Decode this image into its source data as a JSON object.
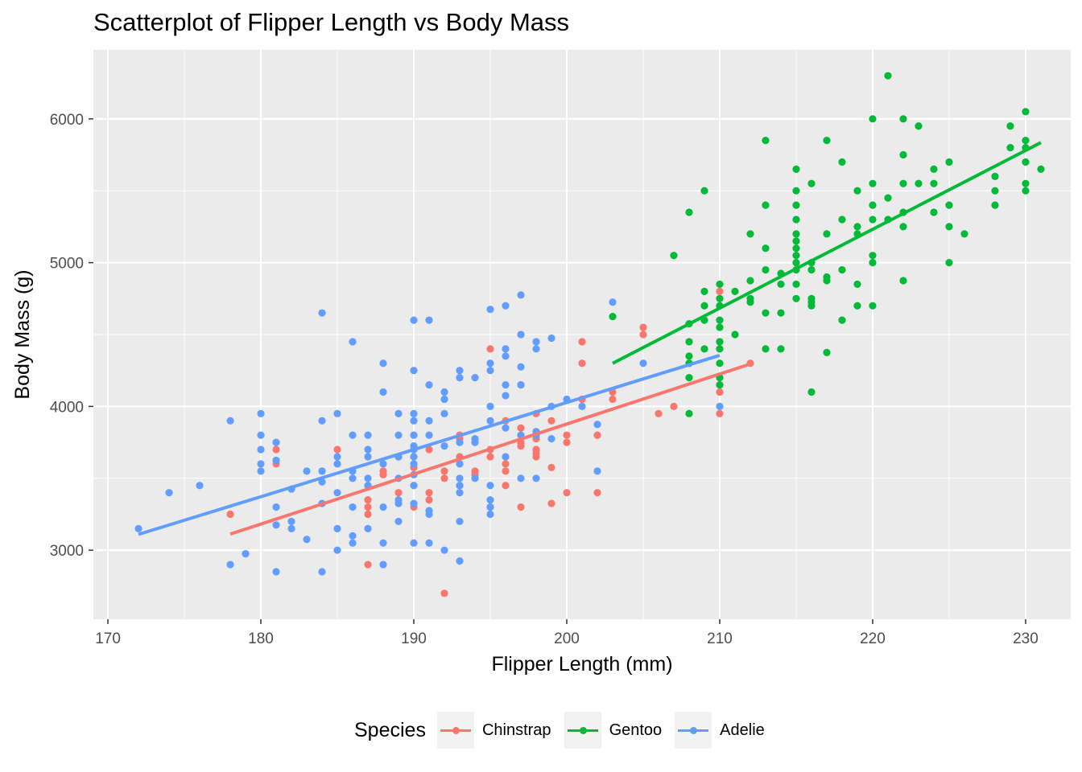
{
  "chart_data": {
    "type": "scatter",
    "title": "Scatterplot of Flipper Length vs Body Mass",
    "xlabel": "Flipper Length (mm)",
    "ylabel": "Body Mass (g)",
    "xlim": [
      169.05,
      232.95
    ],
    "ylim": [
      2520,
      6480
    ],
    "xticks": [
      170,
      180,
      190,
      200,
      210,
      220,
      230
    ],
    "yticks": [
      3000,
      4000,
      5000,
      6000
    ],
    "grid": true,
    "legend": {
      "title": "Species",
      "placement": "bottom"
    },
    "series": [
      {
        "name": "Chinstrap",
        "color": "#F8766D",
        "trend": [
          [
            178,
            3112
          ],
          [
            212,
            4295
          ]
        ],
        "points": [
          [
            178,
            3250
          ],
          [
            181,
            3600
          ],
          [
            181,
            3700
          ],
          [
            185,
            3700
          ],
          [
            187,
            2900
          ],
          [
            187,
            3250
          ],
          [
            187,
            3350
          ],
          [
            187,
            3450
          ],
          [
            188,
            3525
          ],
          [
            189,
            3650
          ],
          [
            190,
            3450
          ],
          [
            190,
            3575
          ],
          [
            191,
            3400
          ],
          [
            191,
            3700
          ],
          [
            192,
            2700
          ],
          [
            192,
            3500
          ],
          [
            193,
            3650
          ],
          [
            193,
            3775
          ],
          [
            194,
            3525
          ],
          [
            195,
            3300
          ],
          [
            195,
            3650
          ],
          [
            195,
            4400
          ],
          [
            196,
            3550
          ],
          [
            196,
            3900
          ],
          [
            197,
            3300
          ],
          [
            197,
            3725
          ],
          [
            197,
            3750
          ],
          [
            197,
            4150
          ],
          [
            198,
            3675
          ],
          [
            198,
            3700
          ],
          [
            198,
            3775
          ],
          [
            198,
            3950
          ],
          [
            199,
            3325
          ],
          [
            199,
            3900
          ],
          [
            200,
            3400
          ],
          [
            200,
            3800
          ],
          [
            201,
            4050
          ],
          [
            201,
            4300
          ],
          [
            201,
            4450
          ],
          [
            202,
            3400
          ],
          [
            202,
            3800
          ],
          [
            203,
            4050
          ],
          [
            203,
            4100
          ],
          [
            205,
            4500
          ],
          [
            205,
            4550
          ],
          [
            206,
            3950
          ],
          [
            207,
            4000
          ],
          [
            210,
            3950
          ],
          [
            210,
            4100
          ],
          [
            210,
            4800
          ],
          [
            212,
            4300
          ],
          [
            193,
            3800
          ],
          [
            196,
            3600
          ],
          [
            197,
            3850
          ],
          [
            192,
            3550
          ],
          [
            189,
            3400
          ],
          [
            191,
            3350
          ],
          [
            193,
            3450
          ],
          [
            195,
            3700
          ],
          [
            194,
            3550
          ],
          [
            200,
            3750
          ],
          [
            198,
            3650
          ],
          [
            199,
            3575
          ],
          [
            196,
            3450
          ],
          [
            190,
            3300
          ],
          [
            188,
            3550
          ],
          [
            187,
            3300
          ],
          [
            197,
            3750
          ]
        ]
      },
      {
        "name": "Gentoo",
        "color": "#00BA38",
        "trend": [
          [
            203,
            4300
          ],
          [
            231,
            5835
          ]
        ],
        "points": [
          [
            203,
            4625
          ],
          [
            207,
            5050
          ],
          [
            208,
            3950
          ],
          [
            208,
            4200
          ],
          [
            208,
            4300
          ],
          [
            208,
            4350
          ],
          [
            208,
            4450
          ],
          [
            208,
            4575
          ],
          [
            208,
            5350
          ],
          [
            209,
            4400
          ],
          [
            209,
            4600
          ],
          [
            209,
            4700
          ],
          [
            209,
            4800
          ],
          [
            209,
            5500
          ],
          [
            210,
            4150
          ],
          [
            210,
            4200
          ],
          [
            210,
            4300
          ],
          [
            210,
            4400
          ],
          [
            210,
            4450
          ],
          [
            210,
            4550
          ],
          [
            210,
            4600
          ],
          [
            210,
            4700
          ],
          [
            210,
            4750
          ],
          [
            210,
            4850
          ],
          [
            211,
            4500
          ],
          [
            211,
            4800
          ],
          [
            212,
            4725
          ],
          [
            212,
            4750
          ],
          [
            212,
            4875
          ],
          [
            212,
            5200
          ],
          [
            213,
            4400
          ],
          [
            213,
            4650
          ],
          [
            213,
            4950
          ],
          [
            213,
            5100
          ],
          [
            213,
            5400
          ],
          [
            213,
            5850
          ],
          [
            214,
            4400
          ],
          [
            214,
            4650
          ],
          [
            214,
            4850
          ],
          [
            214,
            4925
          ],
          [
            215,
            4750
          ],
          [
            215,
            4850
          ],
          [
            215,
            4950
          ],
          [
            215,
            5000
          ],
          [
            215,
            5050
          ],
          [
            215,
            5100
          ],
          [
            215,
            5150
          ],
          [
            215,
            5200
          ],
          [
            215,
            5300
          ],
          [
            215,
            5400
          ],
          [
            215,
            5500
          ],
          [
            215,
            5650
          ],
          [
            216,
            4100
          ],
          [
            216,
            4700
          ],
          [
            216,
            4725
          ],
          [
            216,
            4750
          ],
          [
            216,
            4950
          ],
          [
            216,
            5000
          ],
          [
            216,
            5550
          ],
          [
            217,
            4375
          ],
          [
            217,
            4875
          ],
          [
            217,
            4900
          ],
          [
            217,
            5200
          ],
          [
            217,
            5850
          ],
          [
            218,
            4600
          ],
          [
            218,
            4950
          ],
          [
            218,
            5300
          ],
          [
            218,
            5700
          ],
          [
            219,
            4700
          ],
          [
            219,
            4850
          ],
          [
            219,
            5200
          ],
          [
            219,
            5250
          ],
          [
            219,
            5500
          ],
          [
            220,
            4700
          ],
          [
            220,
            5000
          ],
          [
            220,
            5050
          ],
          [
            220,
            5300
          ],
          [
            220,
            5400
          ],
          [
            220,
            5550
          ],
          [
            220,
            6000
          ],
          [
            221,
            5300
          ],
          [
            221,
            5450
          ],
          [
            221,
            6300
          ],
          [
            222,
            4875
          ],
          [
            222,
            5250
          ],
          [
            222,
            5350
          ],
          [
            222,
            5550
          ],
          [
            222,
            5750
          ],
          [
            222,
            6000
          ],
          [
            223,
            5550
          ],
          [
            223,
            5950
          ],
          [
            224,
            5350
          ],
          [
            224,
            5550
          ],
          [
            224,
            5650
          ],
          [
            225,
            5000
          ],
          [
            225,
            5250
          ],
          [
            225,
            5400
          ],
          [
            225,
            5700
          ],
          [
            226,
            5200
          ],
          [
            228,
            5400
          ],
          [
            228,
            5500
          ],
          [
            228,
            5600
          ],
          [
            229,
            5800
          ],
          [
            229,
            5950
          ],
          [
            230,
            5500
          ],
          [
            230,
            5550
          ],
          [
            230,
            5700
          ],
          [
            230,
            5800
          ],
          [
            230,
            5850
          ],
          [
            230,
            6050
          ],
          [
            231,
            5650
          ]
        ]
      },
      {
        "name": "Adelie",
        "color": "#619CFF",
        "trend": [
          [
            172,
            3110
          ],
          [
            210,
            4355
          ]
        ],
        "points": [
          [
            172,
            3150
          ],
          [
            174,
            3400
          ],
          [
            176,
            3450
          ],
          [
            178,
            2900
          ],
          [
            178,
            3900
          ],
          [
            179,
            2975
          ],
          [
            180,
            3550
          ],
          [
            180,
            3600
          ],
          [
            180,
            3700
          ],
          [
            180,
            3800
          ],
          [
            180,
            3950
          ],
          [
            181,
            2850
          ],
          [
            181,
            3175
          ],
          [
            181,
            3300
          ],
          [
            181,
            3625
          ],
          [
            181,
            3750
          ],
          [
            182,
            3150
          ],
          [
            182,
            3200
          ],
          [
            182,
            3425
          ],
          [
            183,
            3075
          ],
          [
            183,
            3550
          ],
          [
            184,
            2850
          ],
          [
            184,
            3325
          ],
          [
            184,
            3475
          ],
          [
            184,
            3550
          ],
          [
            184,
            3900
          ],
          [
            184,
            4650
          ],
          [
            185,
            3000
          ],
          [
            185,
            3150
          ],
          [
            185,
            3400
          ],
          [
            185,
            3600
          ],
          [
            185,
            3650
          ],
          [
            185,
            3950
          ],
          [
            186,
            3050
          ],
          [
            186,
            3100
          ],
          [
            186,
            3300
          ],
          [
            186,
            3500
          ],
          [
            186,
            3550
          ],
          [
            186,
            3800
          ],
          [
            186,
            4450
          ],
          [
            187,
            3150
          ],
          [
            187,
            3450
          ],
          [
            187,
            3500
          ],
          [
            187,
            3650
          ],
          [
            187,
            3700
          ],
          [
            187,
            3800
          ],
          [
            188,
            2900
          ],
          [
            188,
            3050
          ],
          [
            188,
            3300
          ],
          [
            188,
            3600
          ],
          [
            188,
            4100
          ],
          [
            188,
            4300
          ],
          [
            189,
            3200
          ],
          [
            189,
            3325
          ],
          [
            189,
            3350
          ],
          [
            189,
            3500
          ],
          [
            189,
            3650
          ],
          [
            189,
            3800
          ],
          [
            189,
            3950
          ],
          [
            190,
            3050
          ],
          [
            190,
            3325
          ],
          [
            190,
            3450
          ],
          [
            190,
            3525
          ],
          [
            190,
            3600
          ],
          [
            190,
            3650
          ],
          [
            190,
            3700
          ],
          [
            190,
            3725
          ],
          [
            190,
            3800
          ],
          [
            190,
            3900
          ],
          [
            190,
            3950
          ],
          [
            190,
            4250
          ],
          [
            190,
            4600
          ],
          [
            191,
            3050
          ],
          [
            191,
            3250
          ],
          [
            191,
            3275
          ],
          [
            191,
            3800
          ],
          [
            191,
            3900
          ],
          [
            191,
            4150
          ],
          [
            191,
            4600
          ],
          [
            192,
            3000
          ],
          [
            192,
            3725
          ],
          [
            192,
            3950
          ],
          [
            192,
            4050
          ],
          [
            192,
            4100
          ],
          [
            193,
            2925
          ],
          [
            193,
            3200
          ],
          [
            193,
            3400
          ],
          [
            193,
            3450
          ],
          [
            193,
            3500
          ],
          [
            193,
            3600
          ],
          [
            193,
            3750
          ],
          [
            193,
            4200
          ],
          [
            193,
            4250
          ],
          [
            194,
            3500
          ],
          [
            194,
            3750
          ],
          [
            194,
            3775
          ],
          [
            194,
            4200
          ],
          [
            195,
            3250
          ],
          [
            195,
            3300
          ],
          [
            195,
            3350
          ],
          [
            195,
            3450
          ],
          [
            195,
            3900
          ],
          [
            195,
            4000
          ],
          [
            195,
            4250
          ],
          [
            195,
            4300
          ],
          [
            195,
            4675
          ],
          [
            196,
            3650
          ],
          [
            196,
            3850
          ],
          [
            196,
            4075
          ],
          [
            196,
            4150
          ],
          [
            196,
            4350
          ],
          [
            196,
            4400
          ],
          [
            196,
            4700
          ],
          [
            197,
            3500
          ],
          [
            197,
            3800
          ],
          [
            197,
            4150
          ],
          [
            197,
            4275
          ],
          [
            197,
            4500
          ],
          [
            197,
            4775
          ],
          [
            198,
            3500
          ],
          [
            198,
            3800
          ],
          [
            198,
            3825
          ],
          [
            198,
            4400
          ],
          [
            198,
            4450
          ],
          [
            199,
            3775
          ],
          [
            199,
            4000
          ],
          [
            199,
            4475
          ],
          [
            200,
            4050
          ],
          [
            201,
            4000
          ],
          [
            202,
            3550
          ],
          [
            202,
            3875
          ],
          [
            203,
            4725
          ],
          [
            205,
            4300
          ],
          [
            210,
            4000
          ]
        ]
      }
    ]
  }
}
